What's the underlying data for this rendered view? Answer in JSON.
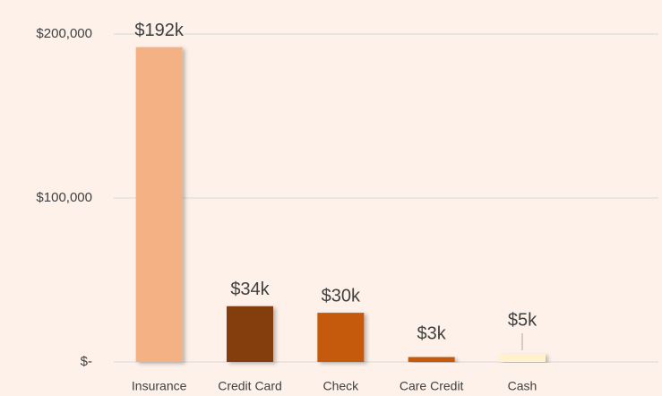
{
  "chart_data": {
    "type": "bar",
    "categories": [
      "Insurance",
      "Credit Card",
      "Check",
      "Care Credit",
      "Cash"
    ],
    "values": [
      192000,
      34000,
      30000,
      3000,
      5000
    ],
    "value_labels": [
      "$192k",
      "$34k",
      "$30k",
      "$3k",
      "$5k"
    ],
    "colors": [
      "#f4b183",
      "#843c0c",
      "#c55a11",
      "#c55a11",
      "#fff2cc"
    ],
    "ylim": [
      0,
      200000
    ],
    "yticks": [
      {
        "value": 0,
        "label": "$-"
      },
      {
        "value": 100000,
        "label": "$100,000"
      },
      {
        "value": 200000,
        "label": "$200,000"
      }
    ],
    "grid": true
  }
}
